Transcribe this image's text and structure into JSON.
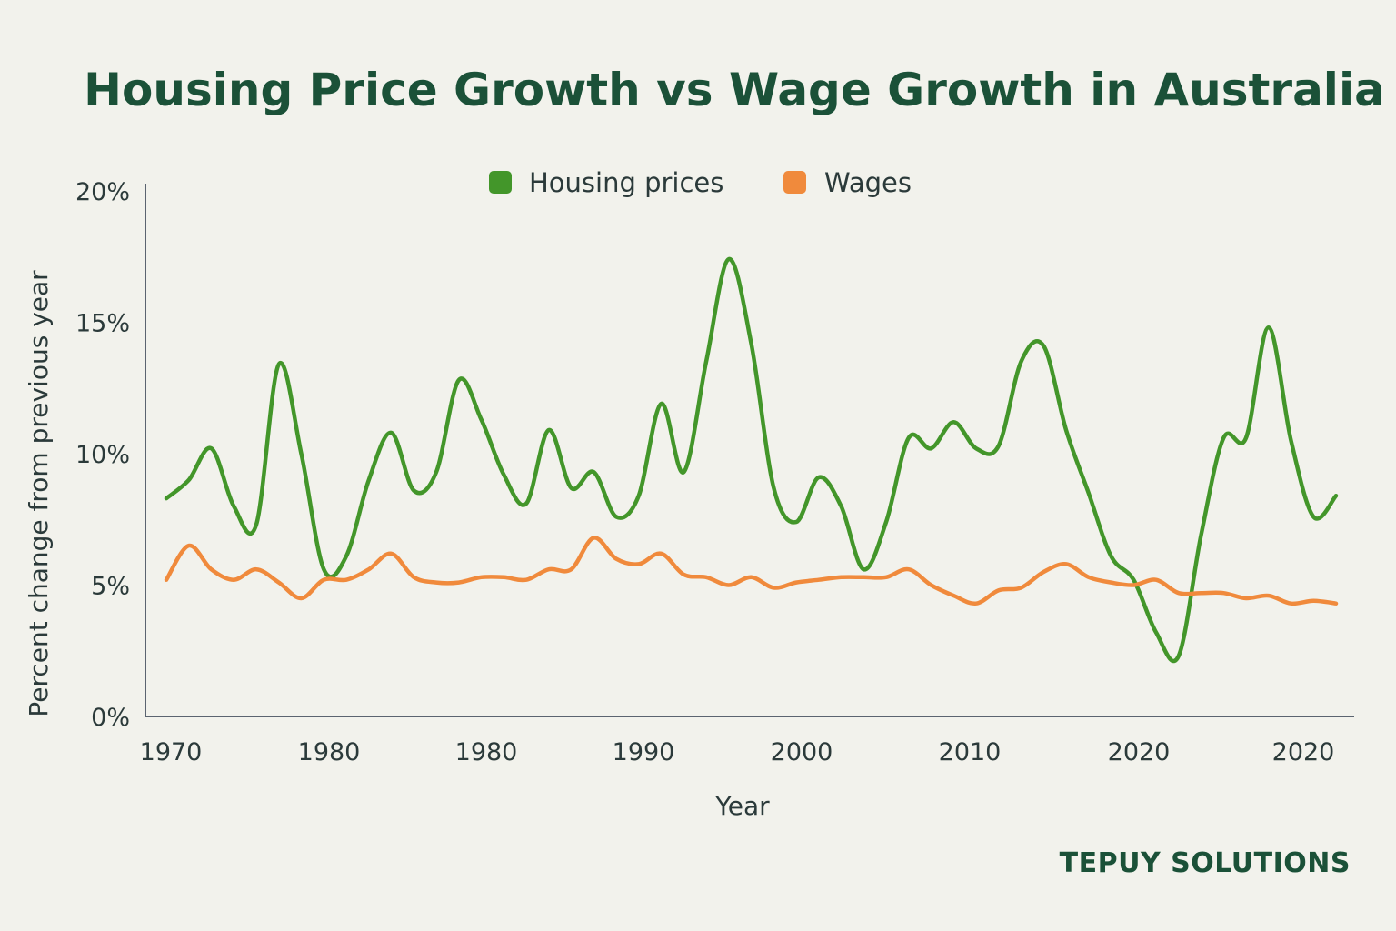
{
  "brand": "TEPUY SOLUTIONS",
  "colors": {
    "housing": "#43962a",
    "wages": "#f08a3c",
    "axis": "#5b6470",
    "text": "#2b3a3a",
    "title": "#1b5138"
  },
  "chart_data": {
    "type": "line",
    "title": "Housing Price Growth vs Wage Growth in Australia",
    "xlabel": "Year",
    "ylabel": "Percent change from previous year",
    "ylim": [
      0,
      20
    ],
    "xlim": [
      1970,
      2022
    ],
    "y_ticks": [
      "0%",
      "5%",
      "10%",
      "15%",
      "20%"
    ],
    "x_ticks": [
      "1970",
      "1980",
      "1980",
      "1990",
      "2000",
      "2010",
      "2020",
      "2020"
    ],
    "legend": {
      "placement": "top-center"
    },
    "grid": false,
    "series": [
      {
        "name": "Housing prices",
        "color": "#43962a",
        "x": [
          1970,
          1971,
          1972,
          1973,
          1974,
          1975,
          1976,
          1977,
          1978,
          1979,
          1980,
          1981,
          1982,
          1983,
          1984,
          1985,
          1986,
          1987,
          1988,
          1989,
          1990,
          1991,
          1992,
          1993,
          1994,
          1995,
          1996,
          1997,
          1998,
          1999,
          2000,
          2001,
          2002,
          2003,
          2004,
          2005,
          2006,
          2007,
          2008,
          2009,
          2010,
          2011,
          2012,
          2013,
          2014,
          2015,
          2016,
          2017,
          2018,
          2019,
          2020,
          2021,
          2022
        ],
        "values": [
          8.3,
          9.0,
          10.2,
          8.0,
          7.3,
          13.4,
          10.0,
          5.6,
          6.1,
          9.0,
          10.8,
          8.6,
          9.3,
          12.8,
          11.3,
          9.2,
          8.1,
          10.9,
          8.7,
          9.3,
          7.6,
          8.4,
          11.9,
          9.3,
          13.5,
          17.4,
          14.2,
          8.7,
          7.4,
          9.1,
          8.0,
          5.6,
          7.4,
          10.6,
          10.2,
          11.2,
          10.2,
          10.3,
          13.5,
          14.1,
          10.9,
          8.5,
          6.1,
          5.2,
          3.2,
          2.3,
          6.9,
          10.6,
          10.6,
          14.8,
          10.5,
          7.6,
          8.4
        ]
      },
      {
        "name": "Wages",
        "color": "#f08a3c",
        "x": [
          1970,
          1971,
          1972,
          1973,
          1974,
          1975,
          1976,
          1977,
          1978,
          1979,
          1980,
          1981,
          1982,
          1983,
          1984,
          1985,
          1986,
          1987,
          1988,
          1989,
          1990,
          1991,
          1992,
          1993,
          1994,
          1995,
          1996,
          1997,
          1998,
          1999,
          2000,
          2001,
          2002,
          2003,
          2004,
          2005,
          2006,
          2007,
          2008,
          2009,
          2010,
          2011,
          2012,
          2013,
          2014,
          2015,
          2016,
          2017,
          2018,
          2019,
          2020,
          2021,
          2022
        ],
        "values": [
          5.2,
          6.5,
          5.6,
          5.2,
          5.6,
          5.1,
          4.5,
          5.2,
          5.2,
          5.6,
          6.2,
          5.3,
          5.1,
          5.1,
          5.3,
          5.3,
          5.2,
          5.6,
          5.6,
          6.8,
          6.0,
          5.8,
          6.2,
          5.4,
          5.3,
          5.0,
          5.3,
          4.9,
          5.1,
          5.2,
          5.3,
          5.3,
          5.3,
          5.6,
          5.0,
          4.6,
          4.3,
          4.8,
          4.9,
          5.5,
          5.8,
          5.3,
          5.1,
          5.0,
          5.2,
          4.7,
          4.7,
          4.7,
          4.5,
          4.6,
          4.3,
          4.4,
          4.3
        ]
      }
    ]
  }
}
